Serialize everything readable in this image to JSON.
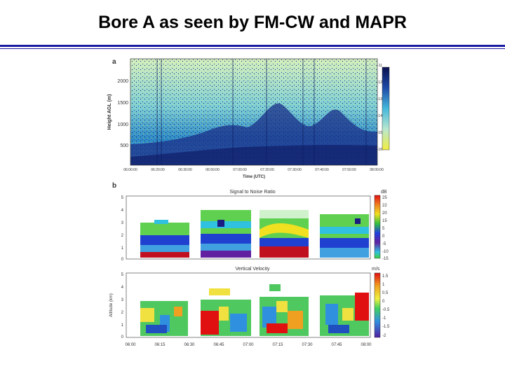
{
  "slide": {
    "title": "Bore A as seen by FM-CW and MAPR"
  },
  "panel_a": {
    "letter": "a",
    "y_label": "Height AGL (m)",
    "y_ticks": [
      "2000",
      "1500",
      "1000",
      "500"
    ],
    "x_label": "Time (UTC)",
    "x_ticks": [
      "06:00:00",
      "06:20:00",
      "06:30:00",
      "06:50:00",
      "07:00:00",
      "07:20:00",
      "07:30:00",
      "07:40:00",
      "07:50:00",
      "08:00:00"
    ],
    "colorbar_ticks": [
      "-11",
      "-12",
      "-13",
      "-14",
      "-15",
      "-16"
    ]
  },
  "panel_b": {
    "letter": "b",
    "top_title": "Signal to Noise Ratio",
    "top_unit": "dB",
    "top_y_ticks": [
      "5",
      "4",
      "3",
      "2",
      "1",
      "0"
    ],
    "top_colorbar_ticks": [
      "25",
      "22",
      "20",
      "15",
      "5",
      "0",
      "-5",
      "-10",
      "-15"
    ],
    "bottom_title": "Vertical Velocity",
    "bottom_unit": "m/s",
    "bottom_y_label": "Altitude (km)",
    "bottom_y_ticks": [
      "5",
      "4",
      "3",
      "2",
      "1",
      "0"
    ],
    "bottom_colorbar_ticks": [
      "1.5",
      "1",
      "0.5",
      "0",
      "-0.5",
      "-1",
      "-1.5",
      "-2"
    ],
    "x_ticks": [
      "06:00",
      "06:15",
      "06:30",
      "06:45",
      "07:00",
      "07:15",
      "07:30",
      "07:45",
      "08:00"
    ]
  },
  "colors": {
    "title_rule": "#1a1aa0"
  }
}
